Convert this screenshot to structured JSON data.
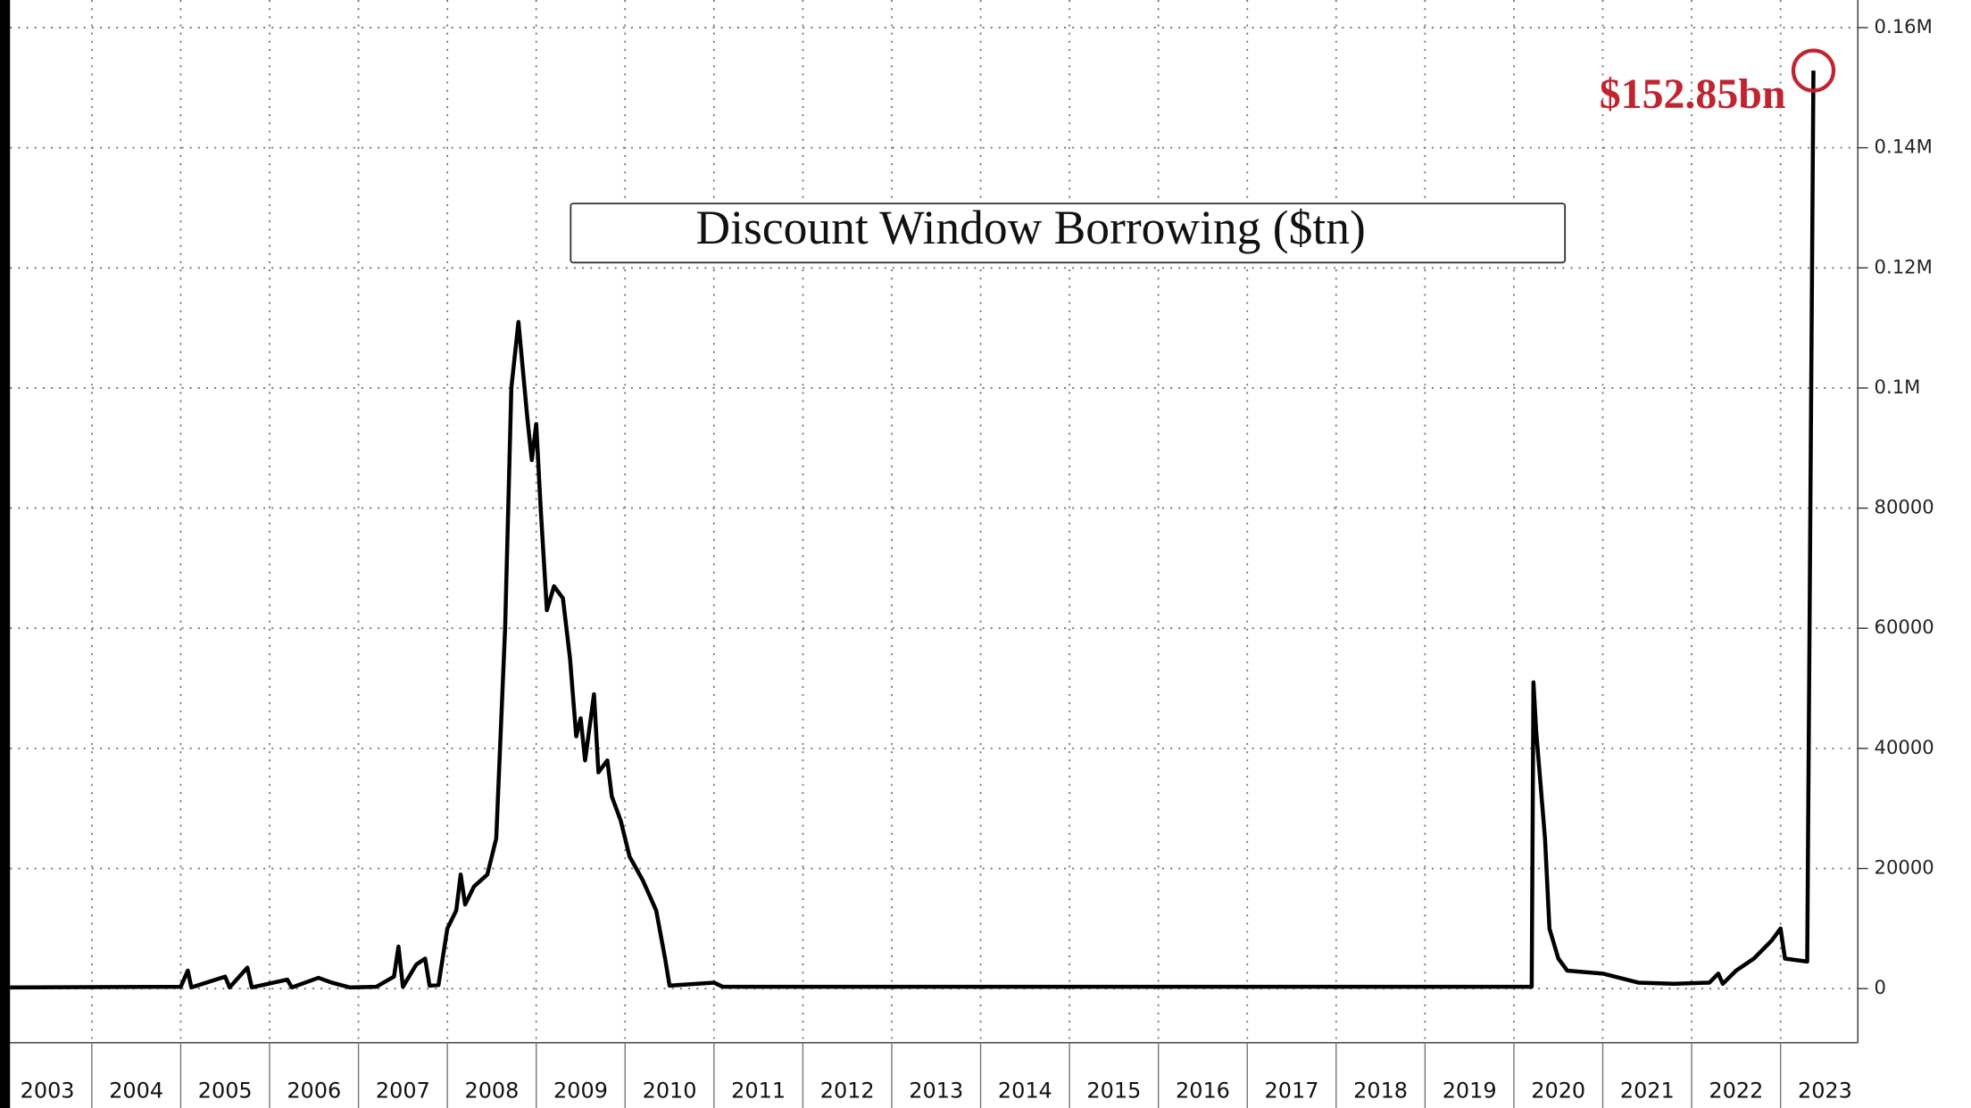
{
  "chart_data": {
    "type": "line",
    "title": "Discount Window Borrowing ($tn)",
    "annotation": "$152.85bn",
    "color": "#000000",
    "annotation_color": "#c0252f",
    "x": [
      2003.08,
      2005.0,
      2005.08,
      2005.12,
      2005.5,
      2005.55,
      2005.75,
      2005.8,
      2006.2,
      2006.25,
      2006.55,
      2006.7,
      2006.9,
      2007.2,
      2007.4,
      2007.45,
      2007.5,
      2007.65,
      2007.75,
      2007.8,
      2007.9,
      2008.0,
      2008.1,
      2008.15,
      2008.2,
      2008.3,
      2008.45,
      2008.55,
      2008.65,
      2008.72,
      2008.8,
      2008.9,
      2008.95,
      2009.0,
      2009.05,
      2009.12,
      2009.2,
      2009.3,
      2009.38,
      2009.45,
      2009.5,
      2009.55,
      2009.65,
      2009.7,
      2009.8,
      2009.85,
      2009.95,
      2010.05,
      2010.2,
      2010.35,
      2010.45,
      2010.5,
      2011.0,
      2011.1,
      2020.2,
      2020.22,
      2020.25,
      2020.35,
      2020.4,
      2020.5,
      2020.6,
      2021.0,
      2021.4,
      2021.8,
      2022.2,
      2022.3,
      2022.35,
      2022.5,
      2022.7,
      2022.9,
      2023.0,
      2023.05,
      2023.3,
      2023.37
    ],
    "values": [
      200,
      300,
      3000,
      200,
      2000,
      200,
      3500,
      200,
      1500,
      200,
      1800,
      1000,
      200,
      300,
      2000,
      7000,
      300,
      4000,
      5000,
      500,
      600,
      10000,
      13000,
      19000,
      14000,
      17000,
      19000,
      25000,
      60000,
      100000,
      111000,
      95000,
      88000,
      94000,
      80000,
      63000,
      67000,
      65000,
      55000,
      42000,
      45000,
      38000,
      49000,
      36000,
      38000,
      32000,
      28000,
      22000,
      18000,
      13000,
      5000,
      500,
      1000,
      300,
      300,
      51000,
      43000,
      25000,
      10000,
      5000,
      3000,
      2500,
      1000,
      800,
      1000,
      2500,
      800,
      3000,
      5000,
      8000,
      10000,
      5000,
      4500,
      152850
    ],
    "xlim": [
      2003.08,
      2023.87
    ],
    "xticks": [
      {
        "value": 2003,
        "label": "2003"
      },
      {
        "value": 2004,
        "label": "2004"
      },
      {
        "value": 2005,
        "label": "2005"
      },
      {
        "value": 2006,
        "label": "2006"
      },
      {
        "value": 2007,
        "label": "2007"
      },
      {
        "value": 2008,
        "label": "2008"
      },
      {
        "value": 2009,
        "label": "2009"
      },
      {
        "value": 2010,
        "label": "2010"
      },
      {
        "value": 2011,
        "label": "2011"
      },
      {
        "value": 2012,
        "label": "2012"
      },
      {
        "value": 2013,
        "label": "2013"
      },
      {
        "value": 2014,
        "label": "2014"
      },
      {
        "value": 2015,
        "label": "2015"
      },
      {
        "value": 2016,
        "label": "2016"
      },
      {
        "value": 2017,
        "label": "2017"
      },
      {
        "value": 2018,
        "label": "2018"
      },
      {
        "value": 2019,
        "label": "2019"
      },
      {
        "value": 2020,
        "label": "2020"
      },
      {
        "value": 2021,
        "label": "2021"
      },
      {
        "value": 2022,
        "label": "2022"
      },
      {
        "value": 2023,
        "label": "2023"
      }
    ],
    "ylim": [
      -9000,
      164600
    ],
    "yticks": [
      0,
      20000,
      40000,
      60000,
      80000,
      {
        "value": 100000,
        "label": "0.1M"
      },
      {
        "value": 120000,
        "label": "0.12M"
      },
      {
        "value": 140000,
        "label": "0.14M"
      },
      {
        "value": 160000,
        "label": "0.16M"
      }
    ],
    "grid": true
  }
}
